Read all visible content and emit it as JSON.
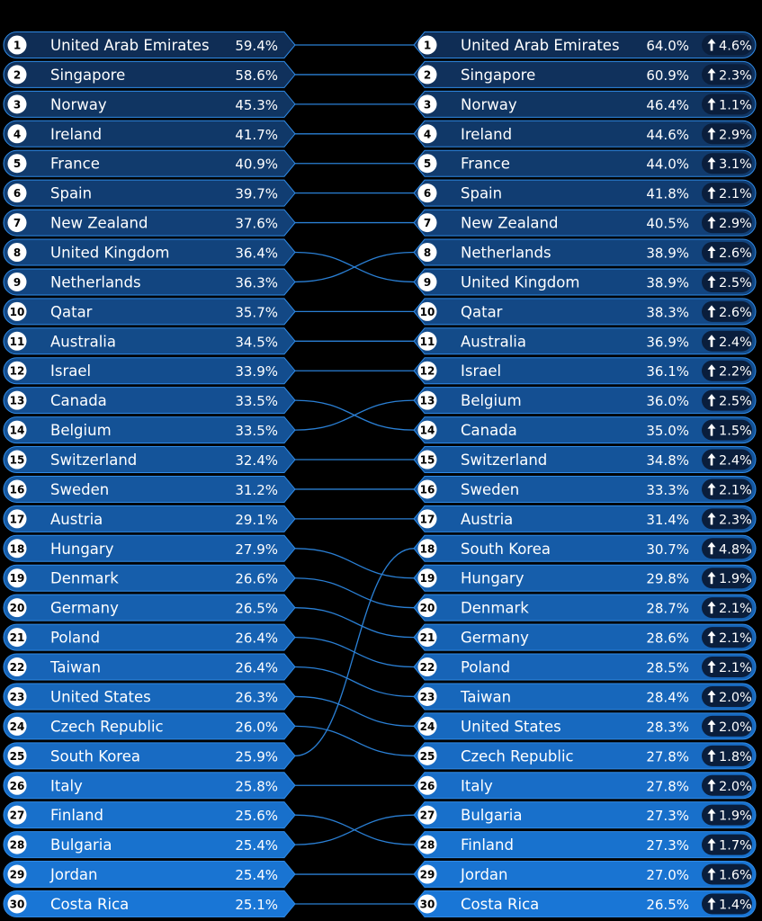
{
  "chart_data": {
    "type": "table",
    "left": {
      "rows": [
        {
          "rank": "1",
          "country": "United Arab Emirates",
          "value": "59.4%"
        },
        {
          "rank": "2",
          "country": "Singapore",
          "value": "58.6%"
        },
        {
          "rank": "3",
          "country": "Norway",
          "value": "45.3%"
        },
        {
          "rank": "4",
          "country": "Ireland",
          "value": "41.7%"
        },
        {
          "rank": "5",
          "country": "France",
          "value": "40.9%"
        },
        {
          "rank": "6",
          "country": "Spain",
          "value": "39.7%"
        },
        {
          "rank": "7",
          "country": "New Zealand",
          "value": "37.6%"
        },
        {
          "rank": "8",
          "country": "United Kingdom",
          "value": "36.4%"
        },
        {
          "rank": "9",
          "country": "Netherlands",
          "value": "36.3%"
        },
        {
          "rank": "10",
          "country": "Qatar",
          "value": "35.7%"
        },
        {
          "rank": "11",
          "country": "Australia",
          "value": "34.5%"
        },
        {
          "rank": "12",
          "country": "Israel",
          "value": "33.9%"
        },
        {
          "rank": "13",
          "country": "Canada",
          "value": "33.5%"
        },
        {
          "rank": "14",
          "country": "Belgium",
          "value": "33.5%"
        },
        {
          "rank": "15",
          "country": "Switzerland",
          "value": "32.4%"
        },
        {
          "rank": "16",
          "country": "Sweden",
          "value": "31.2%"
        },
        {
          "rank": "17",
          "country": "Austria",
          "value": "29.1%"
        },
        {
          "rank": "18",
          "country": "Hungary",
          "value": "27.9%"
        },
        {
          "rank": "19",
          "country": "Denmark",
          "value": "26.6%"
        },
        {
          "rank": "20",
          "country": "Germany",
          "value": "26.5%"
        },
        {
          "rank": "21",
          "country": "Poland",
          "value": "26.4%"
        },
        {
          "rank": "22",
          "country": "Taiwan",
          "value": "26.4%"
        },
        {
          "rank": "23",
          "country": "United States",
          "value": "26.3%"
        },
        {
          "rank": "24",
          "country": "Czech Republic",
          "value": "26.0%"
        },
        {
          "rank": "25",
          "country": "South Korea",
          "value": "25.9%"
        },
        {
          "rank": "26",
          "country": "Italy",
          "value": "25.8%"
        },
        {
          "rank": "27",
          "country": "Finland",
          "value": "25.6%"
        },
        {
          "rank": "28",
          "country": "Bulgaria",
          "value": "25.4%"
        },
        {
          "rank": "29",
          "country": "Jordan",
          "value": "25.4%"
        },
        {
          "rank": "30",
          "country": "Costa Rica",
          "value": "25.1%"
        }
      ]
    },
    "right": {
      "rows": [
        {
          "rank": "1",
          "country": "United Arab Emirates",
          "value": "64.0%",
          "change": "4.6%"
        },
        {
          "rank": "2",
          "country": "Singapore",
          "value": "60.9%",
          "change": "2.3%"
        },
        {
          "rank": "3",
          "country": "Norway",
          "value": "46.4%",
          "change": "1.1%"
        },
        {
          "rank": "4",
          "country": "Ireland",
          "value": "44.6%",
          "change": "2.9%"
        },
        {
          "rank": "5",
          "country": "France",
          "value": "44.0%",
          "change": "3.1%"
        },
        {
          "rank": "6",
          "country": "Spain",
          "value": "41.8%",
          "change": "2.1%"
        },
        {
          "rank": "7",
          "country": "New Zealand",
          "value": "40.5%",
          "change": "2.9%"
        },
        {
          "rank": "8",
          "country": "Netherlands",
          "value": "38.9%",
          "change": "2.6%"
        },
        {
          "rank": "9",
          "country": "United Kingdom",
          "value": "38.9%",
          "change": "2.5%"
        },
        {
          "rank": "10",
          "country": "Qatar",
          "value": "38.3%",
          "change": "2.6%"
        },
        {
          "rank": "11",
          "country": "Australia",
          "value": "36.9%",
          "change": "2.4%"
        },
        {
          "rank": "12",
          "country": "Israel",
          "value": "36.1%",
          "change": "2.2%"
        },
        {
          "rank": "13",
          "country": "Belgium",
          "value": "36.0%",
          "change": "2.5%"
        },
        {
          "rank": "14",
          "country": "Canada",
          "value": "35.0%",
          "change": "1.5%"
        },
        {
          "rank": "15",
          "country": "Switzerland",
          "value": "34.8%",
          "change": "2.4%"
        },
        {
          "rank": "16",
          "country": "Sweden",
          "value": "33.3%",
          "change": "2.1%"
        },
        {
          "rank": "17",
          "country": "Austria",
          "value": "31.4%",
          "change": "2.3%"
        },
        {
          "rank": "18",
          "country": "South Korea",
          "value": "30.7%",
          "change": "4.8%"
        },
        {
          "rank": "19",
          "country": "Hungary",
          "value": "29.8%",
          "change": "1.9%"
        },
        {
          "rank": "20",
          "country": "Denmark",
          "value": "28.7%",
          "change": "2.1%"
        },
        {
          "rank": "21",
          "country": "Germany",
          "value": "28.6%",
          "change": "2.1%"
        },
        {
          "rank": "22",
          "country": "Poland",
          "value": "28.5%",
          "change": "2.1%"
        },
        {
          "rank": "23",
          "country": "Taiwan",
          "value": "28.4%",
          "change": "2.0%"
        },
        {
          "rank": "24",
          "country": "United States",
          "value": "28.3%",
          "change": "2.0%"
        },
        {
          "rank": "25",
          "country": "Czech Republic",
          "value": "27.8%",
          "change": "1.8%"
        },
        {
          "rank": "26",
          "country": "Italy",
          "value": "27.8%",
          "change": "2.0%"
        },
        {
          "rank": "27",
          "country": "Bulgaria",
          "value": "27.3%",
          "change": "1.9%"
        },
        {
          "rank": "28",
          "country": "Finland",
          "value": "27.3%",
          "change": "1.7%"
        },
        {
          "rank": "29",
          "country": "Jordan",
          "value": "27.0%",
          "change": "1.6%"
        },
        {
          "rank": "30",
          "country": "Costa Rica",
          "value": "26.5%",
          "change": "1.4%"
        }
      ]
    },
    "change_icon": "up-arrow-icon",
    "colors": {
      "background": "#000000",
      "row_top": "#0f2d55",
      "row_bottom": "#1976d6",
      "row_border": "#2f8ae6",
      "connector": "#2a7fd4",
      "badge_fill": "#0a1e3c",
      "rank_circle": "#ffffff",
      "rank_text": "#000000",
      "text": "#ffffff"
    }
  }
}
